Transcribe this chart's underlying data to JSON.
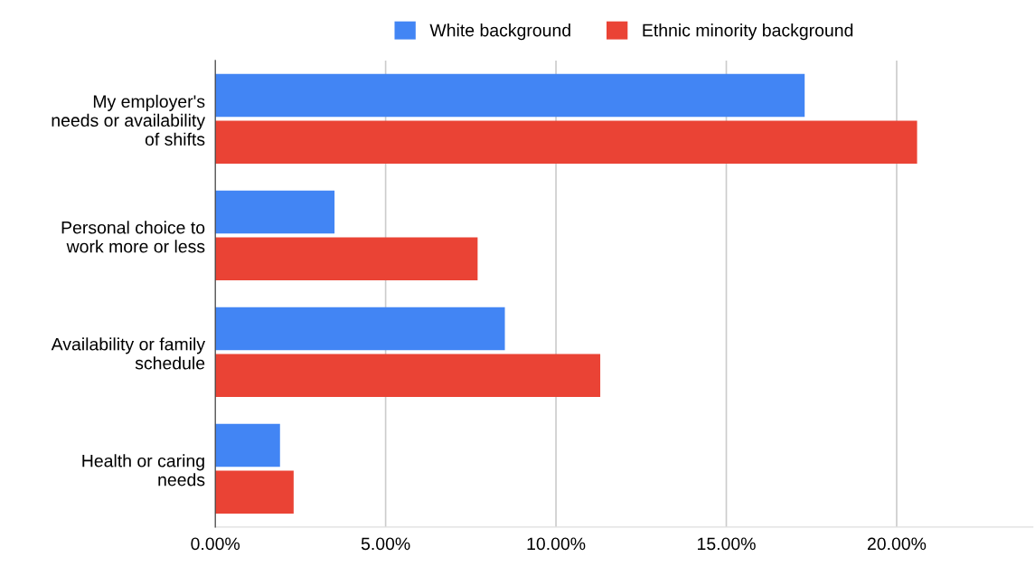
{
  "chart_data": {
    "type": "bar",
    "orientation": "horizontal",
    "categories": [
      "My employer's\nneeds or availability\nof shifts",
      "Personal choice to\nwork more or less",
      "Availability or family\nschedule",
      "Health or caring\nneeds"
    ],
    "series": [
      {
        "name": "White background",
        "color": "#4285f4",
        "values": [
          17.3,
          3.5,
          8.5,
          1.9
        ]
      },
      {
        "name": "Ethnic minority background",
        "color": "#ea4335",
        "values": [
          20.6,
          7.7,
          11.3,
          2.3
        ]
      }
    ],
    "xlim": [
      0,
      24
    ],
    "xticks": [
      {
        "value": 0,
        "label": "0.00%"
      },
      {
        "value": 5,
        "label": "5.00%"
      },
      {
        "value": 10,
        "label": "10.00%"
      },
      {
        "value": 15,
        "label": "15.00%"
      },
      {
        "value": 20,
        "label": "20.00%"
      }
    ],
    "grid": "x",
    "legend": "top"
  }
}
